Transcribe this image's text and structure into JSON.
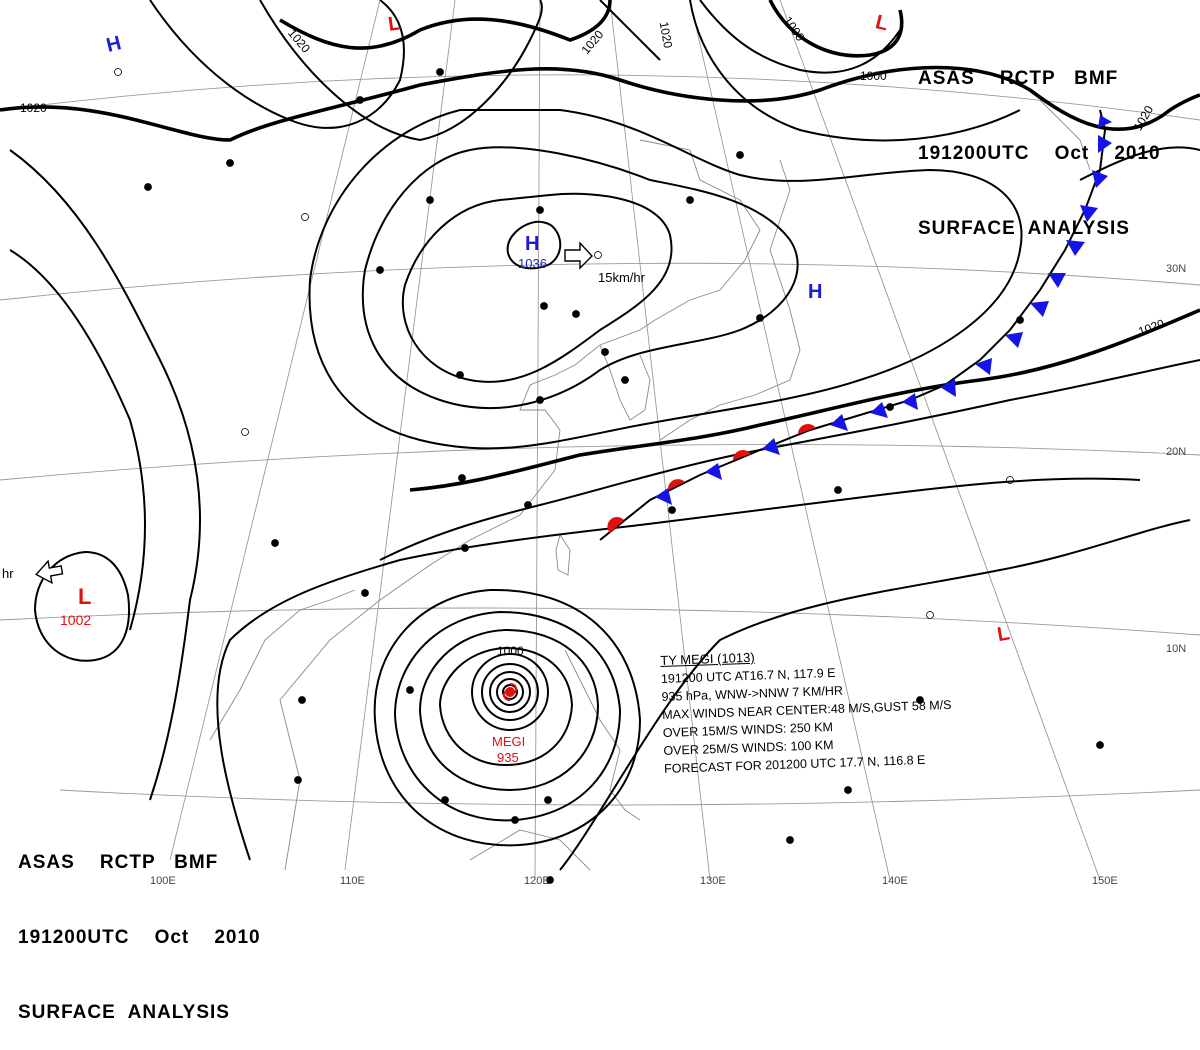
{
  "title_block": {
    "line1": "ASAS    RCTP   BMF",
    "line2": "191200UTC    Oct    2010",
    "line3": "SURFACE  ANALYSIS"
  },
  "typhoon_info": {
    "name_line": "TY  MEGI  (1013)",
    "position_line": "191200 UTC  AT16.7 N, 117.9 E",
    "movement_line": "935 hPa, WNW->NNW  7 KM/HR",
    "max_winds_line": "MAX WINDS NEAR CENTER:48 M/S,GUST 58 M/S",
    "winds15_line": "OVER 15M/S WINDS: 250 KM",
    "winds25_line": "OVER 25M/S WINDS: 100 KM",
    "forecast_line": "FORECAST FOR 201200 UTC 17.7 N, 116.8 E"
  },
  "typhoon_label": {
    "name": "MEGI",
    "pressure": "935"
  },
  "pressure_centers": {
    "high_main": {
      "letter": "H",
      "value": "1036",
      "motion": "15km/hr"
    },
    "high_northwest": {
      "letter": "H"
    },
    "high_pacific": {
      "letter": "H"
    },
    "low_west": {
      "letter": "L",
      "value": "1002",
      "motion": "hr"
    },
    "low_north": {
      "letter": "L"
    },
    "low_northeast": {
      "letter": "L"
    },
    "low_southeast": {
      "letter": "L"
    }
  },
  "isobar_labels": {
    "nw": "1020",
    "n1": "1020",
    "n2": "1020",
    "n3": "1020",
    "ne": "1000",
    "ne2": "1000",
    "e1": "1020",
    "e2": "1020",
    "ty": "1000"
  },
  "longitudes": [
    "110E",
    "120E",
    "130E",
    "140E",
    "150E"
  ],
  "latitudes": [
    "30N",
    "20N",
    "10N"
  ],
  "partial_longitude": "100E",
  "colors": {
    "high": "#1c1cd8",
    "low": "#e01010",
    "cold_front": "#1414e6",
    "warm_front": "#e01010",
    "isobar": "#000000",
    "grid": "#9a9a9a"
  }
}
